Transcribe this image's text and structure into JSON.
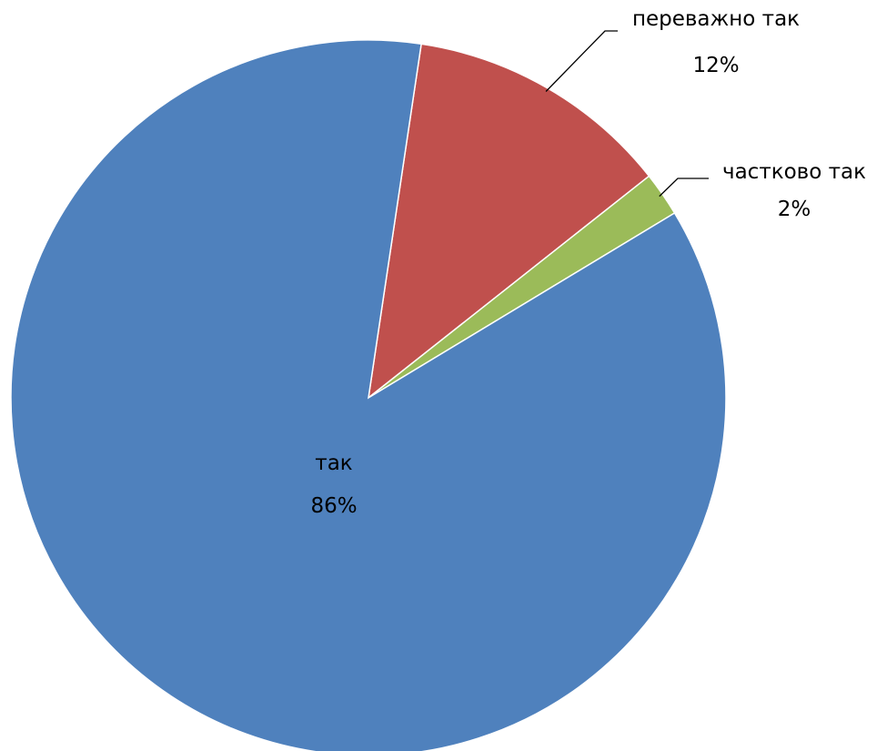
{
  "chart_data": {
    "type": "pie",
    "slices": [
      {
        "label": "переважно так",
        "value": 12,
        "value_label": "12%",
        "color": "#C0504D"
      },
      {
        "label": "частково так",
        "value": 2,
        "value_label": "2%",
        "color": "#9BBB59"
      },
      {
        "label": "так",
        "value": 86,
        "value_label": "86%",
        "color": "#4F81BD"
      }
    ]
  }
}
